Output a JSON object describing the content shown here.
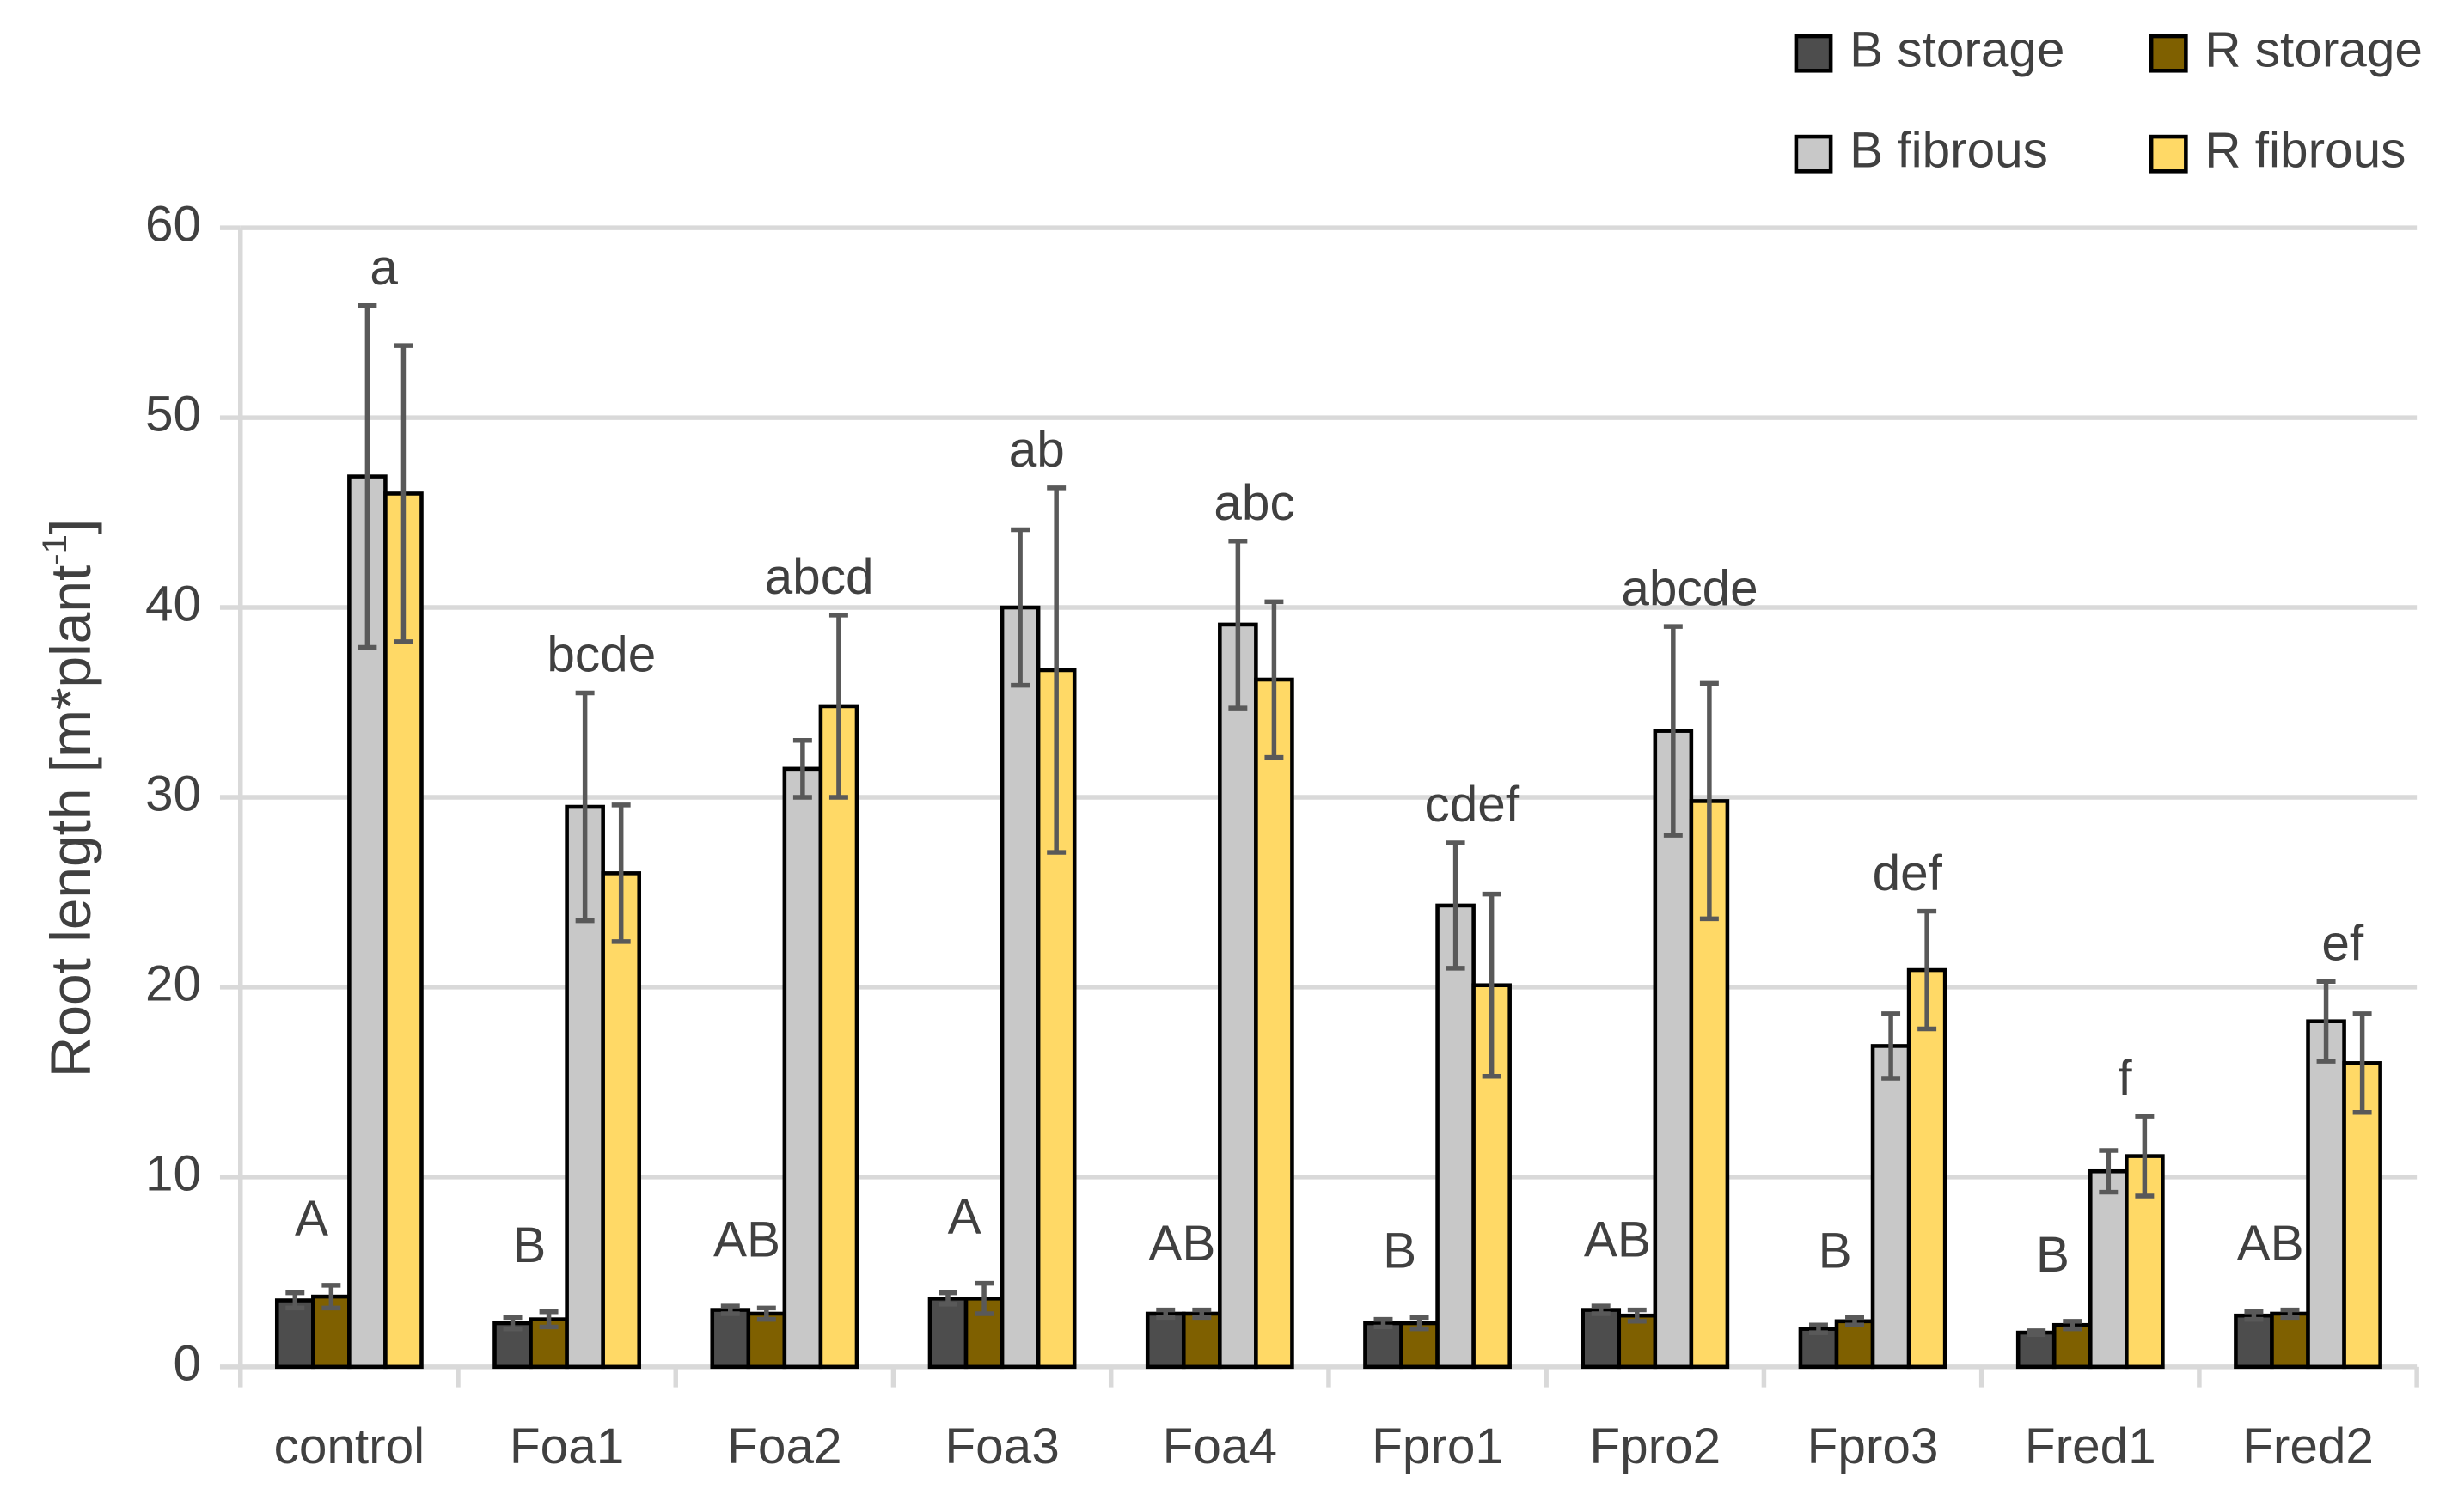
{
  "chart_data": {
    "type": "bar",
    "y_label": "Root length [m*plant",
    "y_label_sup": "-1",
    "y_label_end": "]",
    "categories": [
      "control",
      "Foa1",
      "Foa2",
      "Foa3",
      "Foa4",
      "Fpro1",
      "Fpro2",
      "Fpro3",
      "Fred1",
      "Fred2"
    ],
    "series": [
      {
        "name": "B storage",
        "color": "#4d4d4d",
        "values": [
          3.5,
          2.3,
          3.0,
          3.6,
          2.8,
          2.3,
          3.0,
          2.0,
          1.8,
          2.7
        ],
        "errors": [
          0.4,
          0.3,
          0.2,
          0.3,
          0.2,
          0.2,
          0.2,
          0.2,
          0.1,
          0.2
        ]
      },
      {
        "name": "R storage",
        "color": "#7f6000",
        "values": [
          3.7,
          2.5,
          2.8,
          3.6,
          2.8,
          2.3,
          2.7,
          2.4,
          2.2,
          2.8
        ],
        "errors": [
          0.6,
          0.4,
          0.3,
          0.8,
          0.2,
          0.3,
          0.3,
          0.2,
          0.2,
          0.2
        ]
      },
      {
        "name": "B fibrous",
        "color": "#c8c8c8",
        "values": [
          46.9,
          29.5,
          31.5,
          40.0,
          39.1,
          24.3,
          33.5,
          16.9,
          10.3,
          18.2
        ],
        "errors": [
          9.0,
          6.0,
          1.5,
          4.1,
          4.4,
          3.3,
          5.5,
          1.7,
          1.1,
          2.1
        ]
      },
      {
        "name": "R fibrous",
        "color": "#ffd966",
        "values": [
          46.0,
          26.0,
          34.8,
          36.7,
          36.2,
          20.1,
          29.8,
          20.9,
          11.1,
          16.0
        ],
        "errors": [
          7.8,
          3.6,
          4.8,
          9.6,
          4.1,
          4.8,
          6.2,
          3.1,
          2.1,
          2.6
        ]
      }
    ],
    "letters_storage": [
      "A",
      "B",
      "AB",
      "A",
      "AB",
      "B",
      "AB",
      "B",
      "B",
      "AB"
    ],
    "letters_fibrous": [
      "a",
      "bcde",
      "abcd",
      "ab",
      "abc",
      "cdef",
      "abcde",
      "def",
      "f",
      "ef"
    ],
    "ylim": [
      0,
      60
    ],
    "yticks": [
      0,
      10,
      20,
      30,
      40,
      50,
      60
    ],
    "grid": true,
    "legend": "top-right"
  }
}
